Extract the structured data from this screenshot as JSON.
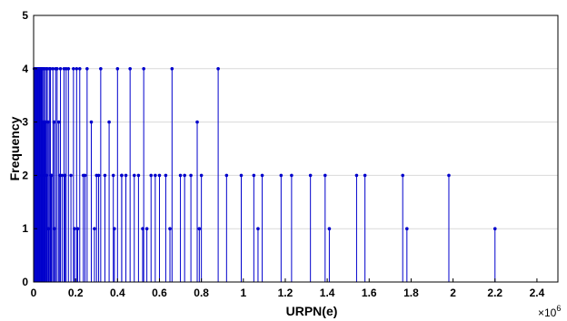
{
  "chart_data": {
    "type": "stem",
    "xlabel": "URPN(e)",
    "ylabel": "Frequency",
    "x_exponent_label": "×10",
    "x_exponent_power": "6",
    "xlim": [
      0,
      2.5
    ],
    "ylim": [
      0,
      5
    ],
    "x_ticks": [
      "0",
      "0.2",
      "0.4",
      "0.6",
      "0.8",
      "1",
      "1.2",
      "1.4",
      "1.6",
      "1.8",
      "2",
      "2.2",
      "2.4"
    ],
    "y_ticks": [
      "0",
      "1",
      "2",
      "3",
      "4",
      "5"
    ],
    "grid": true,
    "color": "#0000cc",
    "series": [
      {
        "x": [
          0.003,
          0.006,
          0.009,
          0.012,
          0.015,
          0.018,
          0.021,
          0.024,
          0.027,
          0.03,
          0.033,
          0.036,
          0.039,
          0.042,
          0.045,
          0.048,
          0.052,
          0.056,
          0.06,
          0.065,
          0.07,
          0.075,
          0.08,
          0.086,
          0.092,
          0.098,
          0.105,
          0.112,
          0.12,
          0.128,
          0.136,
          0.145,
          0.155,
          0.166,
          0.178,
          0.19,
          0.205,
          0.22,
          0.237,
          0.255,
          0.275,
          0.3,
          0.32,
          0.34,
          0.36,
          0.38,
          0.4,
          0.42,
          0.44,
          0.46,
          0.48,
          0.5,
          0.525,
          0.56,
          0.58,
          0.6,
          0.63,
          0.66,
          0.7,
          0.72,
          0.75,
          0.78,
          0.8,
          0.88,
          0.92,
          0.99,
          1.05,
          1.09,
          1.18,
          1.23,
          1.32,
          1.39,
          1.54,
          1.58,
          1.76,
          1.98,
          0.013,
          0.025,
          0.038,
          0.05,
          0.062,
          0.072,
          0.084,
          0.1,
          0.125,
          0.15,
          0.195,
          0.21,
          0.245,
          0.29,
          0.31,
          0.385,
          0.42,
          0.52,
          0.54,
          0.65,
          0.79,
          1.07,
          1.41,
          1.78,
          2.2
        ],
        "y": [
          4,
          4,
          4,
          4,
          4,
          4,
          4,
          4,
          4,
          4,
          4,
          4,
          4,
          4,
          3,
          4,
          4,
          3,
          4,
          4,
          3,
          4,
          4,
          2,
          4,
          3,
          4,
          4,
          3,
          4,
          2,
          4,
          4,
          4,
          2,
          4,
          4,
          4,
          2,
          4,
          3,
          2,
          4,
          2,
          3,
          2,
          4,
          2,
          2,
          4,
          2,
          2,
          4,
          2,
          2,
          2,
          2,
          4,
          2,
          2,
          2,
          3,
          2,
          4,
          2,
          2,
          2,
          2,
          2,
          2,
          2,
          2,
          2,
          2,
          2,
          2,
          2,
          2,
          2,
          2,
          2,
          1,
          2,
          1,
          2,
          2,
          1,
          1,
          2,
          1,
          2,
          1,
          2,
          1,
          1,
          1,
          1,
          1,
          1,
          1,
          1
        ]
      }
    ]
  }
}
